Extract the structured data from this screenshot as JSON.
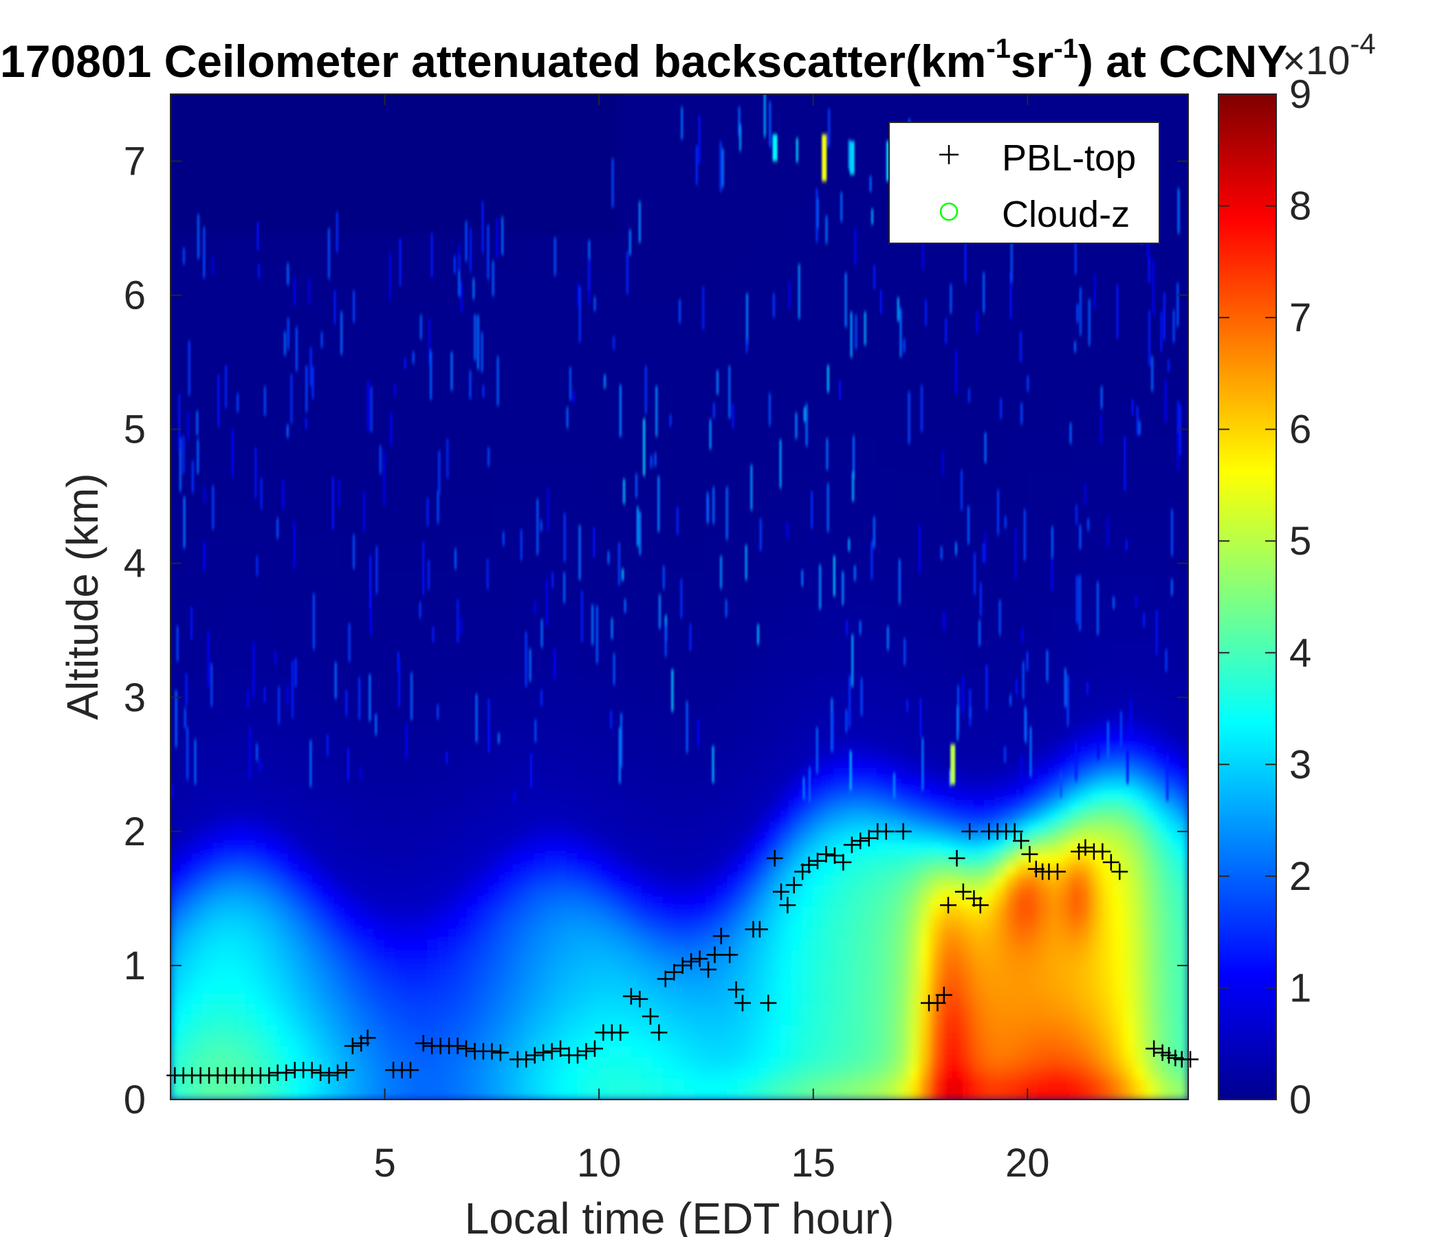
{
  "chart_data": {
    "type": "heatmap",
    "title": {
      "main": "170801 Ceilometer attenuated backscatter(km",
      "sup1": "-1",
      "mid": "sr",
      "sup2": "-1",
      "end": ") at CCNY"
    },
    "xlabel": "Local time (EDT hour)",
    "ylabel": "Altitude (km)",
    "xlim": [
      0,
      23.75
    ],
    "ylim": [
      0,
      7.5
    ],
    "xticks": [
      5,
      10,
      15,
      20
    ],
    "yticks": [
      0,
      1,
      2,
      3,
      4,
      5,
      6,
      7
    ],
    "colorbar": {
      "colormap": "jet",
      "range": [
        0,
        9
      ],
      "ticks": [
        0,
        1,
        2,
        3,
        4,
        5,
        6,
        7,
        8,
        9
      ],
      "exponent_label": "×10",
      "exponent": "-4"
    },
    "legend": {
      "location": "top-right",
      "entries": [
        {
          "label": "PBL-top",
          "marker": "+",
          "color": "#000000"
        },
        {
          "label": "Cloud-z",
          "marker": "o",
          "color": "#00ff00"
        }
      ]
    },
    "series": [
      {
        "name": "PBL-top",
        "marker": "+",
        "points": [
          [
            0.1,
            0.18
          ],
          [
            0.3,
            0.18
          ],
          [
            0.5,
            0.18
          ],
          [
            0.7,
            0.18
          ],
          [
            0.9,
            0.18
          ],
          [
            1.1,
            0.18
          ],
          [
            1.3,
            0.18
          ],
          [
            1.5,
            0.18
          ],
          [
            1.7,
            0.18
          ],
          [
            1.9,
            0.18
          ],
          [
            2.1,
            0.18
          ],
          [
            2.3,
            0.18
          ],
          [
            2.5,
            0.2
          ],
          [
            2.7,
            0.2
          ],
          [
            2.9,
            0.22
          ],
          [
            3.1,
            0.22
          ],
          [
            3.3,
            0.22
          ],
          [
            3.5,
            0.2
          ],
          [
            3.7,
            0.18
          ],
          [
            3.9,
            0.2
          ],
          [
            4.1,
            0.22
          ],
          [
            4.25,
            0.4
          ],
          [
            4.45,
            0.42
          ],
          [
            4.6,
            0.46
          ],
          [
            5.2,
            0.22
          ],
          [
            5.4,
            0.22
          ],
          [
            5.6,
            0.22
          ],
          [
            5.9,
            0.42
          ],
          [
            6.1,
            0.4
          ],
          [
            6.3,
            0.4
          ],
          [
            6.5,
            0.4
          ],
          [
            6.7,
            0.4
          ],
          [
            6.9,
            0.38
          ],
          [
            7.1,
            0.36
          ],
          [
            7.3,
            0.36
          ],
          [
            7.5,
            0.36
          ],
          [
            7.7,
            0.35
          ],
          [
            8.1,
            0.3
          ],
          [
            8.3,
            0.3
          ],
          [
            8.5,
            0.33
          ],
          [
            8.7,
            0.35
          ],
          [
            8.9,
            0.36
          ],
          [
            9.1,
            0.38
          ],
          [
            9.3,
            0.33
          ],
          [
            9.5,
            0.33
          ],
          [
            9.7,
            0.36
          ],
          [
            9.9,
            0.38
          ],
          [
            10.1,
            0.5
          ],
          [
            10.3,
            0.5
          ],
          [
            10.5,
            0.5
          ],
          [
            10.75,
            0.77
          ],
          [
            10.95,
            0.75
          ],
          [
            11.2,
            0.62
          ],
          [
            11.4,
            0.5
          ],
          [
            11.55,
            0.9
          ],
          [
            11.75,
            0.95
          ],
          [
            11.95,
            1.0
          ],
          [
            12.15,
            1.03
          ],
          [
            12.35,
            1.05
          ],
          [
            12.55,
            0.97
          ],
          [
            12.7,
            1.08
          ],
          [
            12.85,
            1.22
          ],
          [
            13.05,
            1.08
          ],
          [
            13.2,
            0.82
          ],
          [
            13.35,
            0.72
          ],
          [
            13.6,
            1.27
          ],
          [
            13.75,
            1.27
          ],
          [
            13.95,
            0.72
          ],
          [
            14.1,
            1.8
          ],
          [
            14.25,
            1.55
          ],
          [
            14.4,
            1.45
          ],
          [
            14.55,
            1.6
          ],
          [
            14.75,
            1.7
          ],
          [
            14.9,
            1.75
          ],
          [
            15.1,
            1.78
          ],
          [
            15.3,
            1.83
          ],
          [
            15.5,
            1.82
          ],
          [
            15.7,
            1.77
          ],
          [
            15.9,
            1.9
          ],
          [
            16.1,
            1.93
          ],
          [
            16.3,
            1.95
          ],
          [
            16.5,
            2.0
          ],
          [
            16.7,
            2.0
          ],
          [
            17.1,
            2.0
          ],
          [
            17.7,
            0.72
          ],
          [
            17.9,
            0.72
          ],
          [
            18.05,
            0.78
          ],
          [
            18.15,
            1.45
          ],
          [
            18.35,
            1.8
          ],
          [
            18.5,
            1.55
          ],
          [
            18.65,
            2.0
          ],
          [
            18.75,
            1.5
          ],
          [
            18.9,
            1.45
          ],
          [
            19.1,
            2.0
          ],
          [
            19.3,
            2.0
          ],
          [
            19.5,
            2.0
          ],
          [
            19.7,
            2.0
          ],
          [
            19.85,
            1.93
          ],
          [
            20.05,
            1.83
          ],
          [
            20.2,
            1.72
          ],
          [
            20.35,
            1.7
          ],
          [
            20.5,
            1.7
          ],
          [
            20.7,
            1.7
          ],
          [
            21.2,
            1.85
          ],
          [
            21.35,
            1.88
          ],
          [
            21.55,
            1.85
          ],
          [
            21.75,
            1.85
          ],
          [
            21.95,
            1.77
          ],
          [
            22.15,
            1.7
          ],
          [
            22.95,
            0.38
          ],
          [
            23.15,
            0.35
          ],
          [
            23.3,
            0.33
          ],
          [
            23.45,
            0.31
          ],
          [
            23.6,
            0.3
          ],
          [
            23.8,
            0.3
          ]
        ]
      },
      {
        "name": "Cloud-z",
        "marker": "o",
        "points": []
      }
    ]
  }
}
